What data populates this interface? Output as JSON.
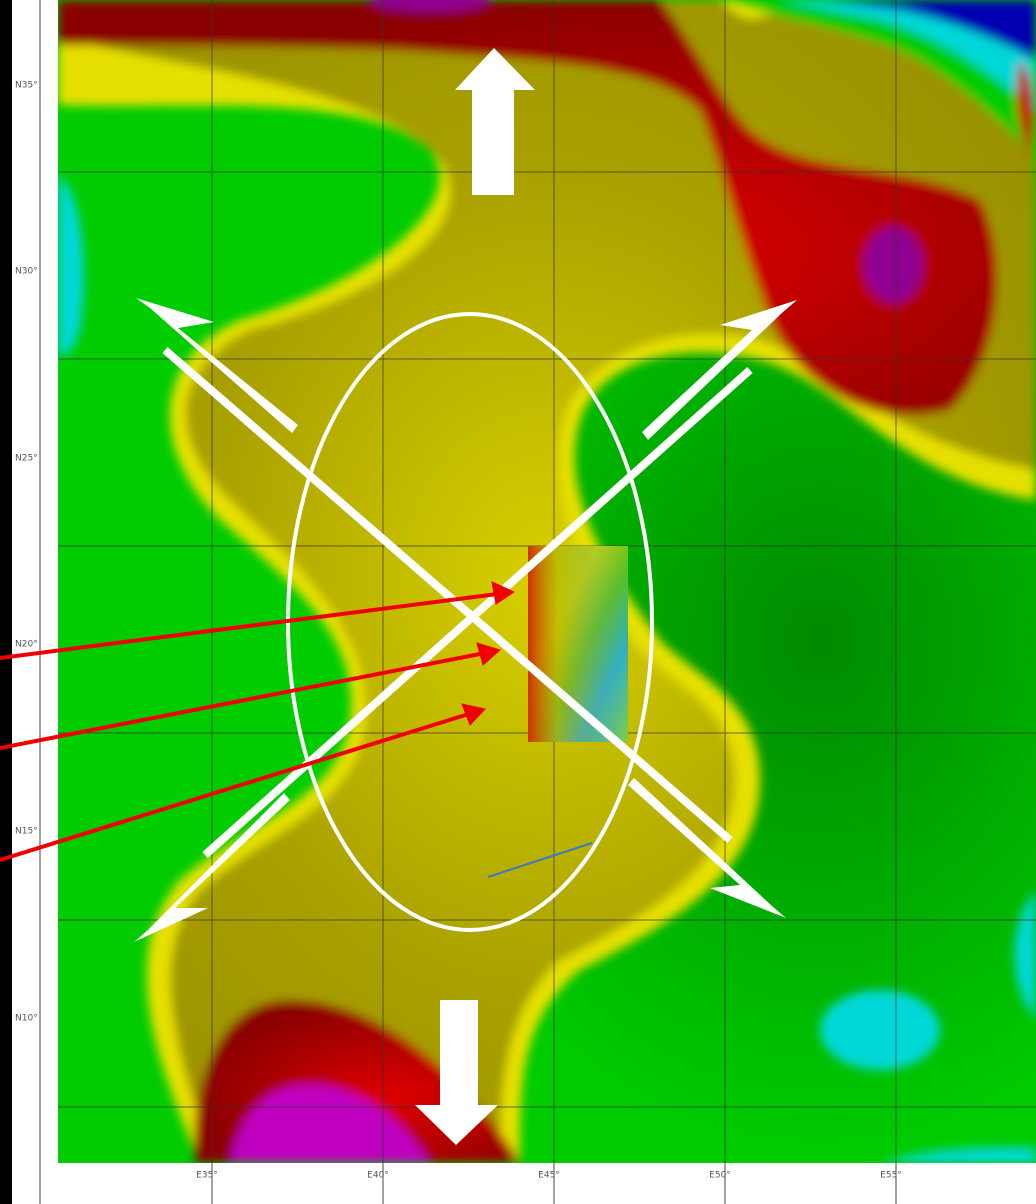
{
  "map": {
    "lat_labels": [
      "N35°",
      "N30°",
      "N25°",
      "N20°",
      "N15°",
      "N10°"
    ],
    "lon_labels": [
      "E35°",
      "E40°",
      "E45°",
      "E50°",
      "E55°"
    ]
  }
}
